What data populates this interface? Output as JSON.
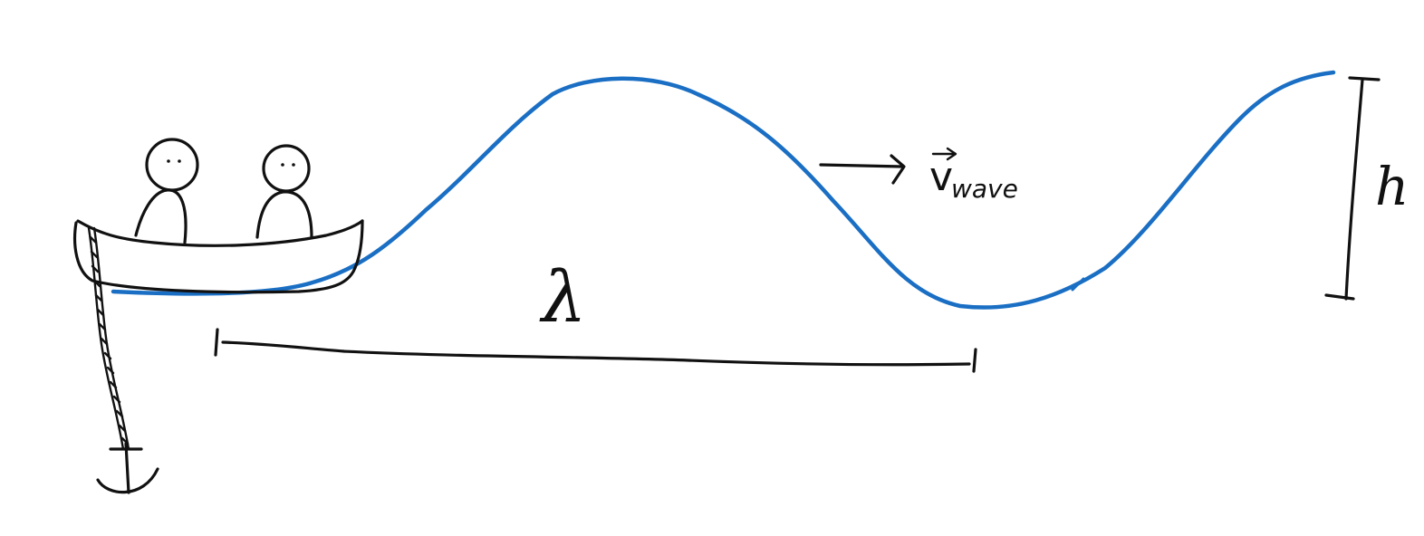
{
  "labels": {
    "wavelength_symbol": "λ",
    "height_symbol": "h",
    "velocity_symbol": "v",
    "velocity_subscript": "wave"
  },
  "colors": {
    "wave": "#1a6fc4",
    "ink": "#111111",
    "background": "#ffffff"
  },
  "figure": {
    "objects": [
      "boat",
      "person",
      "person",
      "anchor-chain",
      "anchor",
      "wave",
      "wavelength-marker",
      "height-marker",
      "velocity-arrow"
    ]
  }
}
